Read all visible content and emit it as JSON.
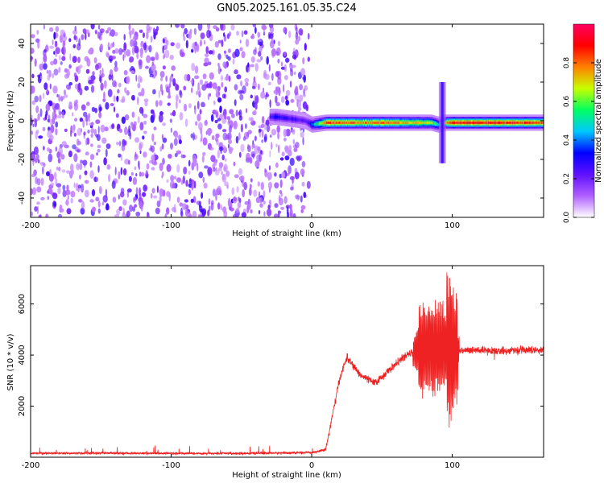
{
  "title": "GN05.2025.161.05.35.C24",
  "colors": {
    "snr_line": "#ee2222",
    "colormap": [
      "#ffffff",
      "#b060ff",
      "#6010ff",
      "#0000ff",
      "#00c8ff",
      "#00ff60",
      "#c8ff00",
      "#ff8000",
      "#ff0000",
      "#ff0060"
    ]
  },
  "chart_data": [
    {
      "type": "heatmap",
      "title": "GN05.2025.161.05.35.C24",
      "xlabel": "Height of straight line (km)",
      "ylabel": "Frequency (Hz)",
      "xlim": [
        -200,
        165
      ],
      "ylim": [
        -50,
        50
      ],
      "x_ticks": [
        "-200",
        "-100",
        "0",
        "100"
      ],
      "x_tick_values": [
        -200,
        -100,
        0,
        100
      ],
      "y_ticks": [
        "-40",
        "-20",
        "0",
        "20",
        "40"
      ],
      "y_tick_values": [
        -40,
        -20,
        0,
        20,
        40
      ],
      "colorbar": {
        "label": "Normalized spectral amplitude",
        "range": [
          0,
          1
        ],
        "ticks": [
          "0.0",
          "0.2",
          "0.4",
          "0.6",
          "0.8"
        ],
        "tick_values": [
          0.0,
          0.2,
          0.4,
          0.6,
          0.8
        ]
      },
      "noise_region_x": [
        -200,
        -2
      ],
      "signal_band": {
        "x": [
          -30,
          -25,
          -15,
          -5,
          0,
          10,
          30,
          60,
          85,
          90,
          95,
          100,
          130,
          165
        ],
        "center_hz": [
          2,
          2,
          1,
          0,
          -2,
          -1,
          -1,
          -1,
          -1,
          -2,
          -1,
          -1,
          -1,
          -1
        ],
        "amplitude": [
          0.3,
          0.35,
          0.3,
          0.25,
          0.4,
          0.9,
          0.85,
          0.85,
          0.7,
          0.5,
          0.8,
          0.95,
          0.95,
          0.9
        ]
      },
      "spike_x": 93,
      "spike_freq_range": [
        -22,
        20
      ]
    },
    {
      "type": "line",
      "xlabel": "Height of straight line (km)",
      "ylabel": "SNR (10 * v/v)",
      "xlim": [
        -200,
        165
      ],
      "ylim": [
        0,
        7500
      ],
      "x_ticks": [
        "-200",
        "-100",
        "0",
        "100"
      ],
      "x_tick_values": [
        -200,
        -100,
        0,
        100
      ],
      "y_ticks": [
        "2000",
        "4000",
        "6000"
      ],
      "y_tick_values": [
        2000,
        4000,
        6000
      ],
      "envelope": {
        "x": [
          -200,
          -150,
          -100,
          -50,
          0,
          10,
          15,
          20,
          25,
          35,
          45,
          55,
          65,
          75,
          85,
          95,
          100,
          110,
          130,
          150,
          165
        ],
        "y": [
          150,
          160,
          150,
          150,
          180,
          300,
          1700,
          3100,
          3900,
          3200,
          2900,
          3400,
          3900,
          4200,
          4300,
          4300,
          4200,
          4200,
          4150,
          4200,
          4200
        ]
      },
      "oscillation_x_range": [
        72,
        105
      ],
      "max_value": 7500,
      "min_value_in_burst": 250
    }
  ]
}
